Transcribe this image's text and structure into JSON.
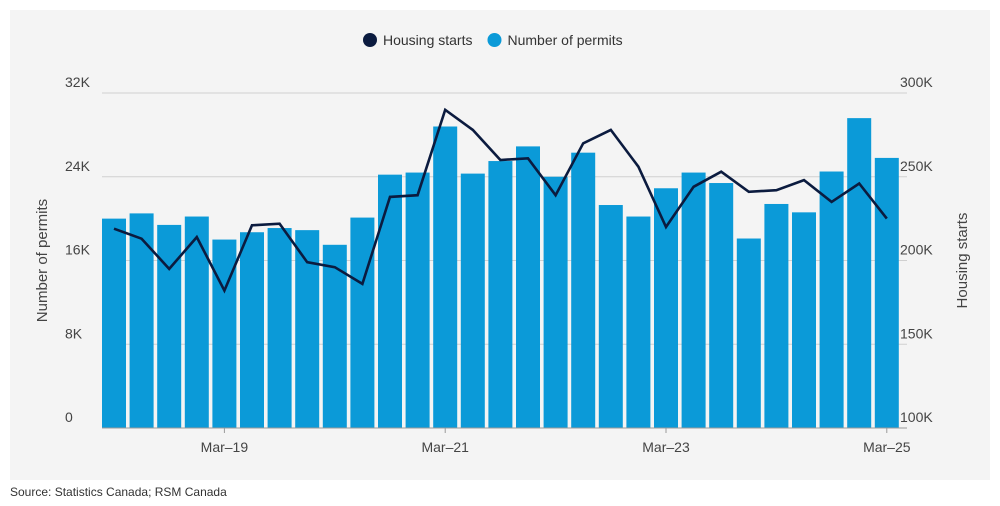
{
  "chart_data": {
    "type": "bar",
    "legend_position": "top-center",
    "legend": [
      {
        "name": "Housing starts",
        "marker": "circle",
        "color": "#0b1b3f"
      },
      {
        "name": "Number of permits",
        "marker": "circle",
        "color": "#0b9ad8"
      }
    ],
    "y_left": {
      "label": "Number of permits",
      "range": [
        0,
        32000
      ],
      "ticks": [
        0,
        8000,
        16000,
        24000,
        32000
      ],
      "tick_labels": [
        "0",
        "8K",
        "16K",
        "24K",
        "32K"
      ]
    },
    "y_right": {
      "label": "Housing starts",
      "range": [
        100000,
        300000
      ],
      "ticks": [
        100000,
        150000,
        200000,
        250000,
        300000
      ],
      "tick_labels": [
        "100K",
        "150K",
        "200K",
        "250K",
        "300K"
      ]
    },
    "x_tick_labels": [
      {
        "index": 4,
        "label": "Mar–19"
      },
      {
        "index": 12,
        "label": "Mar–21"
      },
      {
        "index": 20,
        "label": "Mar–23"
      },
      {
        "index": 28,
        "label": "Mar–25"
      }
    ],
    "series": [
      {
        "name": "Number of permits",
        "type": "bar",
        "axis": "left",
        "color": "#0b9ad8",
        "values": [
          20000,
          20500,
          19400,
          20200,
          18000,
          18700,
          19100,
          18900,
          17500,
          20100,
          24200,
          24400,
          28800,
          24300,
          25500,
          26900,
          24000,
          26300,
          21300,
          20200,
          22900,
          24400,
          23400,
          18100,
          21400,
          20600,
          24500,
          29600,
          25800
        ]
      },
      {
        "name": "Housing starts",
        "type": "line",
        "axis": "right",
        "color": "#0b1b3f",
        "values": [
          219000,
          213000,
          195000,
          214000,
          182000,
          221000,
          222000,
          199000,
          196000,
          186000,
          238000,
          239000,
          290000,
          278000,
          260000,
          261000,
          239000,
          270000,
          278000,
          256000,
          220000,
          244000,
          253000,
          241000,
          242000,
          248000,
          235000,
          246000,
          225000
        ]
      }
    ]
  },
  "footer": {
    "source": "Source: Statistics Canada; RSM Canada"
  }
}
